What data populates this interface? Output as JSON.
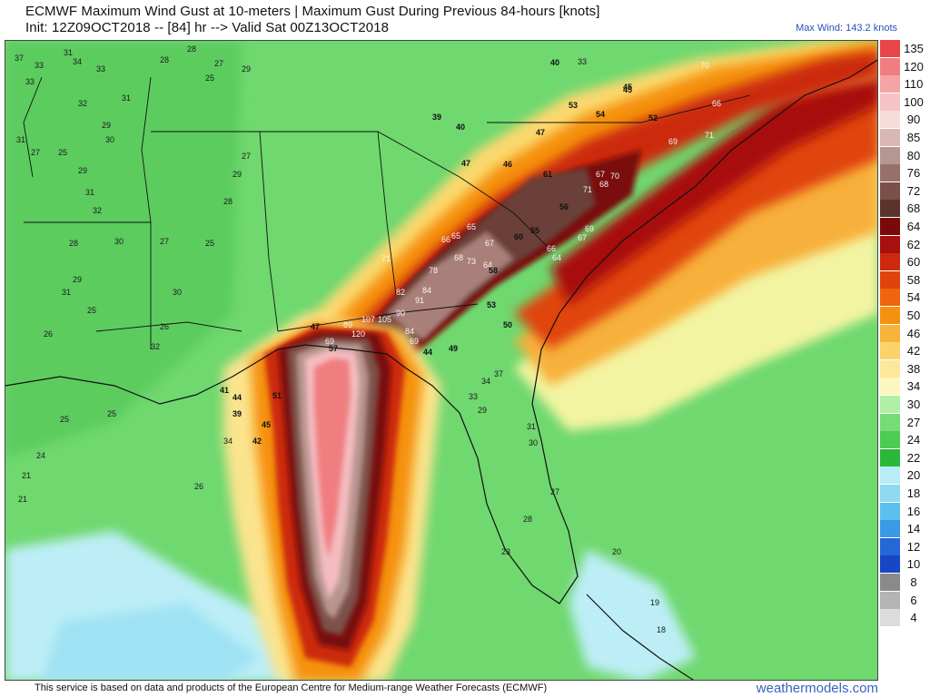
{
  "header": {
    "title": "ECMWF Maximum Wind Gust at 10-meters | Maximum Gust During Previous 84-hours [knots]",
    "subtitle": "Init: 12Z09OCT2018 -- [84] hr --> Valid Sat 00Z13OCT2018",
    "max_wind": "Max Wind: 143.2 knots"
  },
  "legend": {
    "entries": [
      {
        "label": "135",
        "color": "#e8474a"
      },
      {
        "label": "120",
        "color": "#f07d80"
      },
      {
        "label": "110",
        "color": "#f5a4a6"
      },
      {
        "label": "100",
        "color": "#f7c2c4"
      },
      {
        "label": "90",
        "color": "#f7dcdc"
      },
      {
        "label": "85",
        "color": "#d9b8b3"
      },
      {
        "label": "80",
        "color": "#b69690"
      },
      {
        "label": "76",
        "color": "#977169"
      },
      {
        "label": "72",
        "color": "#7a5048"
      },
      {
        "label": "68",
        "color": "#5a342c"
      },
      {
        "label": "64",
        "color": "#7a0a0a"
      },
      {
        "label": "62",
        "color": "#a80f0f"
      },
      {
        "label": "60",
        "color": "#cc2a0e"
      },
      {
        "label": "58",
        "color": "#e1430d"
      },
      {
        "label": "54",
        "color": "#ef640c"
      },
      {
        "label": "50",
        "color": "#f59110"
      },
      {
        "label": "46",
        "color": "#f8b43a"
      },
      {
        "label": "42",
        "color": "#fbd36a"
      },
      {
        "label": "38",
        "color": "#fde89a"
      },
      {
        "label": "34",
        "color": "#fcf6bf"
      },
      {
        "label": "30",
        "color": "#b0f0a6"
      },
      {
        "label": "27",
        "color": "#76dc76"
      },
      {
        "label": "24",
        "color": "#4ccc52"
      },
      {
        "label": "22",
        "color": "#2ab838"
      },
      {
        "label": "20",
        "color": "#b8ecf6"
      },
      {
        "label": "18",
        "color": "#8fdaf0"
      },
      {
        "label": "16",
        "color": "#5cc0ee"
      },
      {
        "label": "14",
        "color": "#3a9ae6"
      },
      {
        "label": "12",
        "color": "#2468d8"
      },
      {
        "label": "10",
        "color": "#1846c6"
      },
      {
        "label": "8",
        "color": "#8a8a8a"
      },
      {
        "label": "6",
        "color": "#b4b4b4"
      },
      {
        "label": "4",
        "color": "#dcdcdc"
      }
    ]
  },
  "map": {
    "value_labels": [
      {
        "text": "37"
      },
      {
        "text": "33"
      },
      {
        "text": "31"
      },
      {
        "text": "34"
      },
      {
        "text": "33"
      },
      {
        "text": "28"
      },
      {
        "text": "27"
      },
      {
        "text": "28"
      },
      {
        "text": "29"
      },
      {
        "text": "25"
      },
      {
        "text": "33"
      },
      {
        "text": "31"
      },
      {
        "text": "32"
      },
      {
        "text": "29"
      },
      {
        "text": "30"
      },
      {
        "text": "31"
      },
      {
        "text": "27"
      },
      {
        "text": "25"
      },
      {
        "text": "29"
      },
      {
        "text": "31"
      },
      {
        "text": "32"
      },
      {
        "text": "30"
      },
      {
        "text": "28"
      },
      {
        "text": "29"
      },
      {
        "text": "31"
      },
      {
        "text": "25"
      },
      {
        "text": "27"
      },
      {
        "text": "25"
      },
      {
        "text": "30"
      },
      {
        "text": "26"
      },
      {
        "text": "32"
      },
      {
        "text": "26"
      },
      {
        "text": "28"
      },
      {
        "text": "27"
      },
      {
        "text": "29"
      },
      {
        "text": "25"
      },
      {
        "text": "24"
      },
      {
        "text": "21"
      },
      {
        "text": "21"
      },
      {
        "text": "25"
      },
      {
        "text": "26"
      },
      {
        "text": "34"
      },
      {
        "text": "42"
      },
      {
        "text": "45"
      },
      {
        "text": "51"
      },
      {
        "text": "44"
      },
      {
        "text": "39"
      },
      {
        "text": "41"
      },
      {
        "text": "47"
      },
      {
        "text": "57"
      },
      {
        "text": "69"
      },
      {
        "text": "89"
      },
      {
        "text": "120"
      },
      {
        "text": "107"
      },
      {
        "text": "105"
      },
      {
        "text": "84"
      },
      {
        "text": "69"
      },
      {
        "text": "90"
      },
      {
        "text": "91"
      },
      {
        "text": "84"
      },
      {
        "text": "82"
      },
      {
        "text": "71"
      },
      {
        "text": "78"
      },
      {
        "text": "68"
      },
      {
        "text": "73"
      },
      {
        "text": "67"
      },
      {
        "text": "65"
      },
      {
        "text": "66"
      },
      {
        "text": "64"
      },
      {
        "text": "65"
      },
      {
        "text": "60"
      },
      {
        "text": "66"
      },
      {
        "text": "64"
      },
      {
        "text": "67"
      },
      {
        "text": "69"
      },
      {
        "text": "56"
      },
      {
        "text": "71"
      },
      {
        "text": "68"
      },
      {
        "text": "67"
      },
      {
        "text": "70"
      },
      {
        "text": "69"
      },
      {
        "text": "71"
      },
      {
        "text": "53"
      },
      {
        "text": "54"
      },
      {
        "text": "52"
      },
      {
        "text": "47"
      },
      {
        "text": "45"
      },
      {
        "text": "40"
      },
      {
        "text": "33"
      },
      {
        "text": "39"
      },
      {
        "text": "40"
      },
      {
        "text": "46"
      },
      {
        "text": "47"
      },
      {
        "text": "49"
      },
      {
        "text": "44"
      },
      {
        "text": "37"
      },
      {
        "text": "34"
      },
      {
        "text": "33"
      },
      {
        "text": "29"
      },
      {
        "text": "31"
      },
      {
        "text": "30"
      },
      {
        "text": "27"
      },
      {
        "text": "28"
      },
      {
        "text": "23"
      },
      {
        "text": "20"
      },
      {
        "text": "19"
      },
      {
        "text": "18"
      },
      {
        "text": "45"
      },
      {
        "text": "70"
      },
      {
        "text": "66"
      },
      {
        "text": "61"
      },
      {
        "text": "55"
      },
      {
        "text": "53"
      },
      {
        "text": "58"
      },
      {
        "text": "50"
      }
    ]
  },
  "footer": {
    "text": "This service is based on data and products of the European Centre for Medium-range Weather Forecasts (ECMWF)",
    "brand": "weathermodels.com"
  }
}
